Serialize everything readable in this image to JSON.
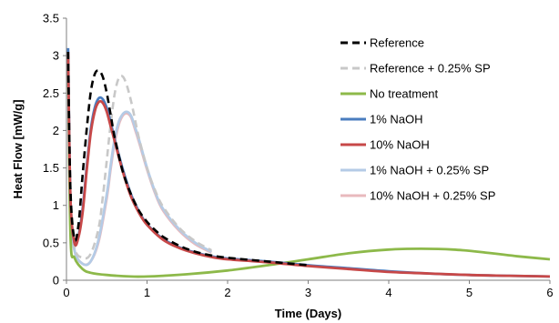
{
  "chart_data": {
    "type": "line",
    "title": "",
    "xlabel": "Time (Days)",
    "ylabel": "Heat Flow [mW/g]",
    "xlim": [
      0,
      6
    ],
    "ylim": [
      0,
      3.5
    ],
    "x_ticks": [
      0,
      1,
      2,
      3,
      4,
      5,
      6
    ],
    "y_ticks": [
      0,
      0.5,
      1,
      1.5,
      2,
      2.5,
      3,
      3.5
    ],
    "x_tick_labels": [
      "0",
      "1",
      "2",
      "3",
      "4",
      "5",
      "6"
    ],
    "y_tick_labels": [
      "0",
      "0.5",
      "1",
      "1.5",
      "2",
      "2.5",
      "3",
      "3.5"
    ],
    "grid": false,
    "legend_position": "top-right",
    "series": [
      {
        "name": "Reference",
        "color": "#000000",
        "dash": "dashed",
        "x": [
          0.02,
          0.05,
          0.1,
          0.15,
          0.2,
          0.25,
          0.3,
          0.35,
          0.4,
          0.45,
          0.5,
          0.55,
          0.6,
          0.7,
          0.8,
          0.9,
          1.0,
          1.1,
          1.2,
          1.4,
          1.6,
          1.8,
          2.0,
          2.5,
          3.0
        ],
        "y": [
          3.05,
          1.2,
          0.55,
          0.75,
          1.4,
          2.0,
          2.5,
          2.75,
          2.8,
          2.72,
          2.5,
          2.2,
          1.9,
          1.45,
          1.15,
          0.93,
          0.78,
          0.67,
          0.58,
          0.46,
          0.38,
          0.33,
          0.3,
          0.25,
          0.2
        ]
      },
      {
        "name": "Reference + 0.25% SP",
        "color": "#c8c8c8",
        "dash": "dashed",
        "x": [
          0.02,
          0.05,
          0.1,
          0.2,
          0.3,
          0.4,
          0.45,
          0.5,
          0.55,
          0.6,
          0.65,
          0.7,
          0.75,
          0.8,
          0.85,
          0.9,
          1.0,
          1.1,
          1.2,
          1.4,
          1.6,
          1.8
        ],
        "y": [
          3.05,
          1.2,
          0.45,
          0.3,
          0.35,
          0.7,
          1.1,
          1.6,
          2.1,
          2.5,
          2.7,
          2.72,
          2.6,
          2.4,
          2.15,
          1.9,
          1.5,
          1.2,
          0.98,
          0.7,
          0.52,
          0.4
        ]
      },
      {
        "name": "No treatment",
        "color": "#8db94a",
        "dash": "solid",
        "x": [
          0.02,
          0.05,
          0.1,
          0.2,
          0.3,
          0.5,
          0.8,
          1.0,
          1.2,
          1.5,
          2.0,
          2.5,
          3.0,
          3.5,
          4.0,
          4.4,
          4.8,
          5.2,
          5.6,
          6.0
        ],
        "y": [
          3.0,
          0.6,
          0.3,
          0.15,
          0.1,
          0.07,
          0.05,
          0.05,
          0.06,
          0.08,
          0.13,
          0.2,
          0.28,
          0.36,
          0.41,
          0.42,
          0.41,
          0.37,
          0.32,
          0.28
        ]
      },
      {
        "name": "1% NaOH",
        "color": "#4a7dbf",
        "dash": "solid",
        "x": [
          0.02,
          0.05,
          0.1,
          0.15,
          0.2,
          0.25,
          0.3,
          0.35,
          0.4,
          0.45,
          0.5,
          0.55,
          0.6,
          0.7,
          0.8,
          0.9,
          1.0,
          1.2,
          1.4,
          1.6,
          1.8,
          2.0,
          2.5,
          3.0,
          3.5,
          4.0,
          4.5,
          5.0,
          5.5,
          6.0
        ],
        "y": [
          3.1,
          1.1,
          0.5,
          0.6,
          0.95,
          1.5,
          2.0,
          2.3,
          2.43,
          2.42,
          2.3,
          2.1,
          1.88,
          1.48,
          1.15,
          0.92,
          0.75,
          0.55,
          0.44,
          0.37,
          0.32,
          0.29,
          0.25,
          0.2,
          0.16,
          0.12,
          0.09,
          0.07,
          0.06,
          0.05
        ]
      },
      {
        "name": "10% NaOH",
        "color": "#c74848",
        "dash": "solid",
        "x": [
          0.02,
          0.05,
          0.1,
          0.15,
          0.2,
          0.25,
          0.3,
          0.35,
          0.4,
          0.45,
          0.5,
          0.55,
          0.6,
          0.7,
          0.8,
          0.9,
          1.0,
          1.2,
          1.4,
          1.6,
          1.8,
          2.0,
          2.5,
          3.0,
          3.5,
          4.0,
          4.5,
          5.0,
          5.5,
          6.0
        ],
        "y": [
          3.05,
          1.1,
          0.5,
          0.58,
          0.9,
          1.45,
          1.95,
          2.25,
          2.38,
          2.37,
          2.25,
          2.05,
          1.85,
          1.45,
          1.12,
          0.9,
          0.74,
          0.54,
          0.43,
          0.36,
          0.31,
          0.28,
          0.24,
          0.19,
          0.15,
          0.11,
          0.09,
          0.07,
          0.06,
          0.05
        ]
      },
      {
        "name": "1% NaOH + 0.25% SP",
        "color": "#b4cbe6",
        "dash": "solid",
        "x": [
          0.02,
          0.05,
          0.1,
          0.2,
          0.3,
          0.4,
          0.5,
          0.55,
          0.6,
          0.65,
          0.7,
          0.75,
          0.8,
          0.85,
          0.9,
          1.0,
          1.1,
          1.2,
          1.4,
          1.6,
          1.8
        ],
        "y": [
          3.0,
          1.0,
          0.4,
          0.22,
          0.25,
          0.55,
          1.15,
          1.55,
          1.9,
          2.12,
          2.22,
          2.25,
          2.2,
          2.05,
          1.88,
          1.5,
          1.18,
          0.95,
          0.68,
          0.5,
          0.38
        ]
      },
      {
        "name": "10% NaOH + 0.25% SP",
        "color": "#e8b9bd",
        "dash": "solid",
        "x": [
          0.02,
          0.05,
          0.1,
          0.2,
          0.3,
          0.4,
          0.5,
          0.55,
          0.6,
          0.65,
          0.7,
          0.75,
          0.8,
          0.85,
          0.9,
          1.0,
          1.1,
          1.2,
          1.4,
          1.6,
          1.8
        ],
        "y": [
          3.0,
          1.0,
          0.4,
          0.22,
          0.25,
          0.52,
          1.1,
          1.5,
          1.85,
          2.08,
          2.2,
          2.23,
          2.18,
          2.02,
          1.85,
          1.48,
          1.16,
          0.93,
          0.66,
          0.48,
          0.37
        ]
      }
    ]
  }
}
